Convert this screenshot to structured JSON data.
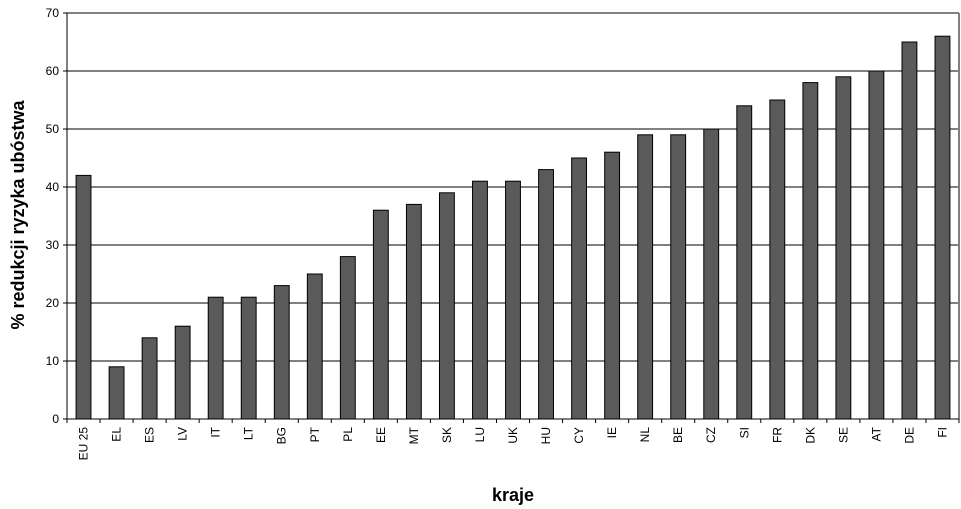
{
  "chart_data": {
    "type": "bar",
    "xlabel": "kraje",
    "ylabel": "% redukcji ryzyka ubóstwa",
    "ylim": [
      0,
      70
    ],
    "yticks": [
      0,
      10,
      20,
      30,
      40,
      50,
      60,
      70
    ],
    "grid": true,
    "categories": [
      "EU 25",
      "EL",
      "ES",
      "LV",
      "IT",
      "LT",
      "BG",
      "PT",
      "PL",
      "EE",
      "MT",
      "SK",
      "LU",
      "UK",
      "HU",
      "CY",
      "IE",
      "NL",
      "BE",
      "CZ",
      "SI",
      "FR",
      "DK",
      "SE",
      "AT",
      "DE",
      "FI"
    ],
    "values": [
      42,
      9,
      14,
      16,
      21,
      21,
      23,
      25,
      28,
      36,
      37,
      39,
      41,
      41,
      43,
      45,
      46,
      49,
      49,
      50,
      54,
      55,
      58,
      59,
      60,
      65,
      66
    ],
    "colors": {
      "bar_fill": "#5a5a5a",
      "bar_stroke": "#000000",
      "grid": "#000000",
      "plot_border": "#808080"
    }
  }
}
